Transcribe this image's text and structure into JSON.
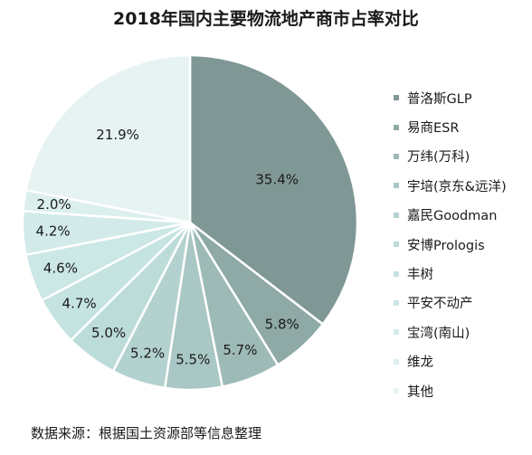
{
  "chart_data": {
    "type": "pie",
    "title": "2018年国内主要物流地产商市占率对比",
    "source": "数据来源：根据国土资源部等信息整理",
    "slices": [
      {
        "name": "普洛斯GLP",
        "value": 35.4,
        "label": "35.4%",
        "color": "#7f9895"
      },
      {
        "name": "易商ESR",
        "value": 5.8,
        "label": "5.8%",
        "color": "#8ea9a6"
      },
      {
        "name": "万纬(万科)",
        "value": 5.7,
        "label": "5.7%",
        "color": "#9dbab7"
      },
      {
        "name": "宇培(京东&远洋)",
        "value": 5.5,
        "label": "5.5%",
        "color": "#a9c7c4"
      },
      {
        "name": "嘉民Goodman",
        "value": 5.2,
        "label": "5.2%",
        "color": "#b3d2cf"
      },
      {
        "name": "安博Prologis",
        "value": 5.0,
        "label": "5.0%",
        "color": "#bcdcd9"
      },
      {
        "name": "丰树",
        "value": 4.7,
        "label": "4.7%",
        "color": "#c4e3e1"
      },
      {
        "name": "平安不动产",
        "value": 4.6,
        "label": "4.6%",
        "color": "#cbe7e6"
      },
      {
        "name": "宝湾(南山)",
        "value": 4.2,
        "label": "4.2%",
        "color": "#d2ebea"
      },
      {
        "name": "维龙",
        "value": 2.0,
        "label": "2.0%",
        "color": "#dbefee"
      },
      {
        "name": "其他",
        "value": 21.9,
        "label": "21.9%",
        "color": "#e6f3f2"
      }
    ],
    "start_angle": "12 o'clock",
    "direction": "clockwise",
    "legend_position": "right"
  }
}
